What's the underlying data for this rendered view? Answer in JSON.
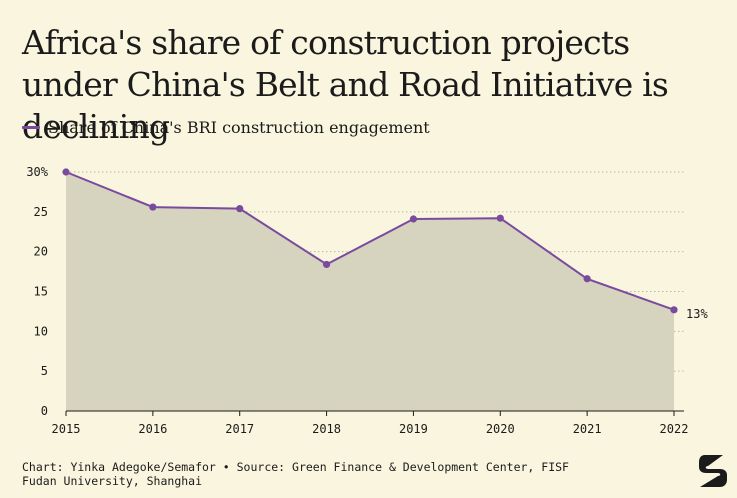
{
  "header": {
    "title": "Africa's share of construction projects under China's Belt and Road Initiative is declining"
  },
  "legend": {
    "label": "Share of China's BRI construction engagement"
  },
  "footer": {
    "credit_line1": "Chart: Yinka Adegoke/Semafor • Source: Green Finance & Development Center, FISF",
    "credit_line2": "Fudan University, Shanghai"
  },
  "colors": {
    "line": "#7a4a9e",
    "area": "#d6d4bf",
    "background": "#f9f5de",
    "grid": "#bcb9a6"
  },
  "logo_icon": "semafor-logo-icon",
  "chart_data": {
    "type": "area",
    "title": "Africa's share of construction projects under China's Belt and Road Initiative is declining",
    "xlabel": "",
    "ylabel": "",
    "x": [
      "2015",
      "2016",
      "2017",
      "2018",
      "2019",
      "2020",
      "2021",
      "2022"
    ],
    "series": [
      {
        "name": "Share of China's BRI construction engagement",
        "values": [
          30,
          25.6,
          25.4,
          18.4,
          24.1,
          24.2,
          16.6,
          12.7
        ]
      }
    ],
    "ylim": [
      0,
      30
    ],
    "yticks": [
      "30%",
      "25",
      "20",
      "15",
      "10",
      "5",
      "0"
    ],
    "ytick_values": [
      30,
      25,
      20,
      15,
      10,
      5,
      0
    ],
    "annotations": [
      {
        "x": "2022",
        "text": "13%"
      }
    ],
    "grid": "horizontal-dotted",
    "legend_position": "top-left"
  }
}
